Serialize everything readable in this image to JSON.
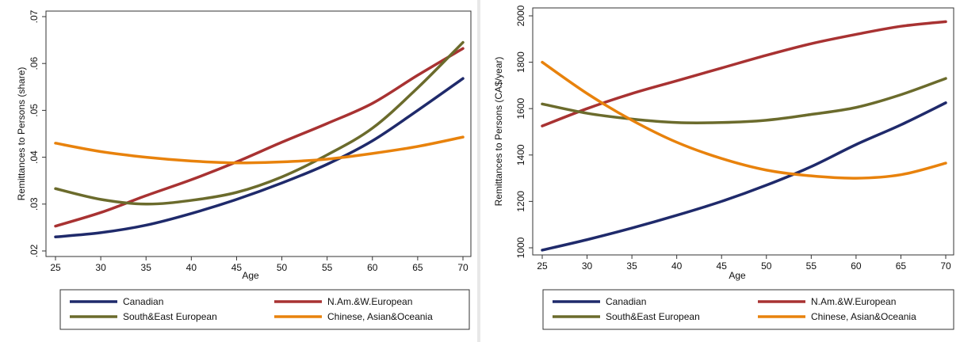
{
  "header_cut_text": "",
  "chart_data": [
    {
      "type": "line",
      "title": "",
      "xlabel": "Age",
      "ylabel": "Remittances to Persons (share)",
      "xlim": [
        25,
        70
      ],
      "ylim": [
        0.02,
        0.07
      ],
      "x_ticks": [
        25,
        30,
        35,
        40,
        45,
        50,
        55,
        60,
        65,
        70
      ],
      "y_ticks": [
        0.02,
        0.03,
        0.04,
        0.05,
        0.06,
        0.07
      ],
      "y_tick_labels": [
        ".02",
        ".03",
        ".04",
        ".05",
        ".06",
        ".07"
      ],
      "grid": false,
      "legend_position": "bottom",
      "series": [
        {
          "name": "Canadian",
          "color": "#1f2a6b",
          "x": [
            25,
            30,
            35,
            40,
            45,
            50,
            55,
            60,
            65,
            70
          ],
          "y": [
            0.023,
            0.0239,
            0.0255,
            0.028,
            0.031,
            0.0345,
            0.0385,
            0.0435,
            0.05,
            0.0568
          ]
        },
        {
          "name": "N.Am.&W.European",
          "color": "#a83232",
          "x": [
            25,
            30,
            35,
            40,
            45,
            50,
            55,
            60,
            65,
            70
          ],
          "y": [
            0.0253,
            0.0282,
            0.0318,
            0.0352,
            0.039,
            0.0432,
            0.0472,
            0.0515,
            0.0575,
            0.0632
          ]
        },
        {
          "name": "South&East European",
          "color": "#6b6b2c",
          "x": [
            25,
            30,
            35,
            40,
            45,
            50,
            55,
            60,
            65,
            70
          ],
          "y": [
            0.0333,
            0.031,
            0.03,
            0.0308,
            0.0325,
            0.0358,
            0.0405,
            0.0462,
            0.0548,
            0.0645
          ]
        },
        {
          "name": "Chinese, Asian&Oceania",
          "color": "#e8820c",
          "x": [
            25,
            30,
            35,
            40,
            45,
            50,
            55,
            60,
            65,
            70
          ],
          "y": [
            0.043,
            0.0412,
            0.04,
            0.0392,
            0.0388,
            0.039,
            0.0396,
            0.0408,
            0.0423,
            0.0443
          ]
        }
      ]
    },
    {
      "type": "line",
      "title": "",
      "xlabel": "Age",
      "ylabel": "Remittances to Persons (CA$/year)",
      "xlim": [
        25,
        70
      ],
      "ylim": [
        1000,
        2000
      ],
      "x_ticks": [
        25,
        30,
        35,
        40,
        45,
        50,
        55,
        60,
        65,
        70
      ],
      "y_ticks": [
        1000,
        1200,
        1400,
        1600,
        1800,
        2000
      ],
      "y_tick_labels": [
        "1000",
        "1200",
        "1400",
        "1600",
        "1800",
        "2000"
      ],
      "grid": false,
      "legend_position": "bottom",
      "series": [
        {
          "name": "Canadian",
          "color": "#1f2a6b",
          "x": [
            25,
            30,
            35,
            40,
            45,
            50,
            55,
            60,
            65,
            70
          ],
          "y": [
            990,
            1035,
            1085,
            1140,
            1200,
            1270,
            1350,
            1445,
            1530,
            1625
          ]
        },
        {
          "name": "N.Am.&W.European",
          "color": "#a83232",
          "x": [
            25,
            30,
            35,
            40,
            45,
            50,
            55,
            60,
            65,
            70
          ],
          "y": [
            1525,
            1600,
            1665,
            1720,
            1775,
            1830,
            1880,
            1920,
            1955,
            1975
          ]
        },
        {
          "name": "South&East European",
          "color": "#6b6b2c",
          "x": [
            25,
            30,
            35,
            40,
            45,
            50,
            55,
            60,
            65,
            70
          ],
          "y": [
            1620,
            1580,
            1555,
            1540,
            1540,
            1550,
            1575,
            1605,
            1660,
            1730
          ]
        },
        {
          "name": "Chinese, Asian&Oceania",
          "color": "#e8820c",
          "x": [
            25,
            30,
            35,
            40,
            45,
            50,
            55,
            60,
            65,
            70
          ],
          "y": [
            1800,
            1665,
            1550,
            1455,
            1385,
            1335,
            1310,
            1300,
            1315,
            1365
          ]
        }
      ]
    }
  ]
}
